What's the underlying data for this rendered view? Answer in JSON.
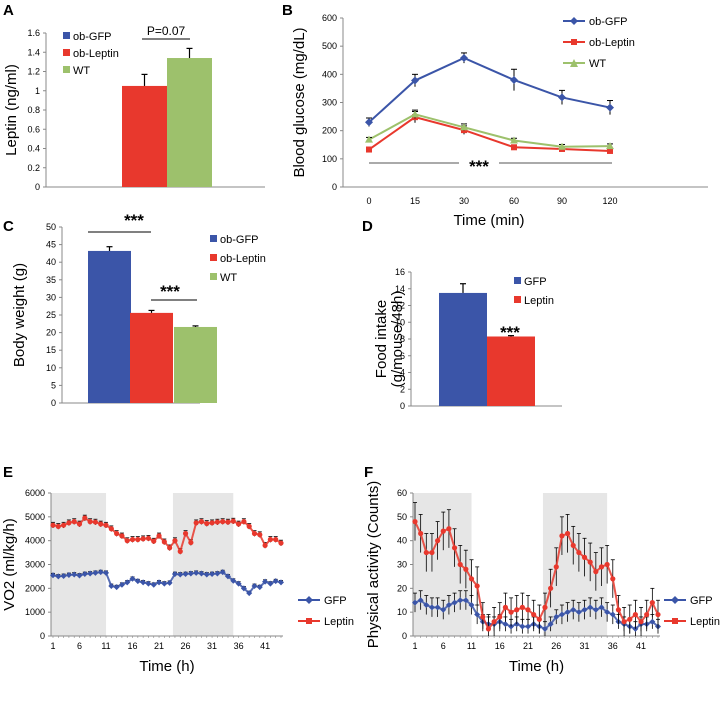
{
  "colors": {
    "gfp": "#3b55a8",
    "leptin": "#e8382d",
    "wt": "#9dc16c",
    "shade": "#e6e6e6",
    "axis": "#888888"
  },
  "chart_data": [
    {
      "panel": "A",
      "type": "bar",
      "ylabel": "Leptin (ng/ml)",
      "ylim": [
        0,
        1.6
      ],
      "yticks": [
        "0",
        "0.2",
        "0.4",
        "0.6",
        "0.8",
        "1",
        "1.2",
        "1.4",
        "1.6"
      ],
      "series": [
        {
          "name": "ob-GFP",
          "value": 0,
          "err": 0
        },
        {
          "name": "ob-Leptin",
          "value": 1.05,
          "err": 0.12
        },
        {
          "name": "WT",
          "value": 1.34,
          "err": 0.1
        }
      ],
      "annotation": "P=0.07"
    },
    {
      "panel": "B",
      "type": "line",
      "xlabel": "Time (min)",
      "ylabel": "Blood glucose (mg/dL)",
      "ylim": [
        0,
        600
      ],
      "yticks": [
        "0",
        "100",
        "200",
        "300",
        "400",
        "500",
        "600"
      ],
      "x": [
        "0",
        "15",
        "30",
        "60",
        "90",
        "120"
      ],
      "series": [
        {
          "name": "ob-GFP",
          "values": [
            230,
            378,
            458,
            380,
            318,
            282
          ],
          "err": [
            15,
            22,
            18,
            38,
            25,
            25
          ]
        },
        {
          "name": "ob-Leptin",
          "values": [
            133,
            248,
            202,
            141,
            135,
            128
          ],
          "err": [
            8,
            20,
            15,
            8,
            8,
            8
          ]
        },
        {
          "name": "WT",
          "values": [
            168,
            258,
            212,
            165,
            143,
            145
          ],
          "err": [
            8,
            15,
            12,
            8,
            8,
            8
          ]
        }
      ],
      "annotation": "***"
    },
    {
      "panel": "C",
      "type": "bar",
      "ylabel": "Body weight (g)",
      "ylim": [
        0,
        50
      ],
      "yticks": [
        "0",
        "5",
        "10",
        "15",
        "20",
        "25",
        "30",
        "35",
        "40",
        "45",
        "50"
      ],
      "series": [
        {
          "name": "ob-GFP",
          "value": 43.2,
          "err": 1.2
        },
        {
          "name": "ob-Leptin",
          "value": 25.6,
          "err": 0.7
        },
        {
          "name": "WT",
          "value": 21.6,
          "err": 0.3
        }
      ],
      "annotations": [
        "***",
        "***"
      ]
    },
    {
      "panel": "D",
      "type": "bar",
      "ylabel": "Food intake",
      "ylabel2": "(g/mouse/48h)",
      "ylim": [
        0,
        16
      ],
      "yticks": [
        "0",
        "2",
        "4",
        "6",
        "8",
        "10",
        "12",
        "14",
        "16"
      ],
      "series": [
        {
          "name": "GFP",
          "value": 13.5,
          "err": 1.1
        },
        {
          "name": "Leptin",
          "value": 8.3,
          "err": 0.1
        }
      ],
      "annotation": "***"
    },
    {
      "panel": "E",
      "type": "line",
      "xlabel": "Time (h)",
      "ylabel": "VO2 (ml/kg/h)",
      "ylim": [
        0,
        6000
      ],
      "yticks": [
        "0",
        "1000",
        "2000",
        "3000",
        "4000",
        "5000",
        "6000"
      ],
      "xticks": [
        "1",
        "6",
        "11",
        "16",
        "21",
        "26",
        "31",
        "36",
        "41"
      ],
      "shaded": [
        [
          1,
          11
        ],
        [
          24,
          35
        ]
      ],
      "series": [
        {
          "name": "GFP",
          "values": [
            2550,
            2500,
            2520,
            2560,
            2580,
            2540,
            2600,
            2620,
            2650,
            2680,
            2650,
            2100,
            2050,
            2150,
            2250,
            2400,
            2300,
            2250,
            2200,
            2150,
            2250,
            2200,
            2230,
            2600,
            2580,
            2600,
            2620,
            2650,
            2620,
            2580,
            2600,
            2620,
            2680,
            2500,
            2320,
            2200,
            2000,
            1800,
            2100,
            2050,
            2280,
            2200,
            2300,
            2250
          ],
          "err": [
            80,
            80,
            80,
            80,
            80,
            80,
            80,
            80,
            80,
            80,
            80,
            80,
            80,
            80,
            80,
            80,
            80,
            80,
            80,
            80,
            80,
            80,
            80,
            80,
            80,
            80,
            80,
            80,
            80,
            80,
            80,
            80,
            80,
            80,
            80,
            80,
            80,
            80,
            80,
            80,
            80,
            80,
            80,
            80
          ]
        },
        {
          "name": "Leptin",
          "values": [
            4650,
            4600,
            4650,
            4750,
            4800,
            4700,
            4950,
            4800,
            4780,
            4700,
            4650,
            4500,
            4300,
            4200,
            4000,
            4050,
            4050,
            4080,
            4100,
            3980,
            4200,
            3950,
            3700,
            4000,
            3550,
            4300,
            3920,
            4750,
            4800,
            4720,
            4750,
            4780,
            4800,
            4780,
            4820,
            4700,
            4800,
            4600,
            4300,
            4250,
            3800,
            4050,
            4050,
            3900
          ],
          "err": [
            120,
            120,
            120,
            120,
            120,
            120,
            120,
            120,
            120,
            120,
            120,
            120,
            120,
            120,
            120,
            120,
            120,
            120,
            120,
            120,
            120,
            120,
            120,
            120,
            120,
            120,
            120,
            120,
            120,
            120,
            120,
            120,
            120,
            120,
            120,
            120,
            120,
            120,
            120,
            120,
            120,
            120,
            120,
            120
          ]
        }
      ]
    },
    {
      "panel": "F",
      "type": "line",
      "xlabel": "Time (h)",
      "ylabel": "Physical activity (Counts)",
      "ylim": [
        0,
        60
      ],
      "yticks": [
        "0",
        "10",
        "20",
        "30",
        "40",
        "50",
        "60"
      ],
      "xticks": [
        "1",
        "6",
        "11",
        "16",
        "21",
        "26",
        "31",
        "36",
        "41"
      ],
      "shaded": [
        [
          1,
          11
        ],
        [
          24,
          35
        ]
      ],
      "series": [
        {
          "name": "GFP",
          "values": [
            14,
            15,
            13,
            12,
            12,
            11,
            13,
            14,
            15,
            15,
            13,
            9,
            6,
            5,
            5,
            6,
            5,
            4,
            5,
            4,
            4,
            5,
            4,
            3,
            5,
            8,
            9,
            10,
            11,
            10,
            11,
            12,
            11,
            12,
            10,
            9,
            6,
            5,
            4,
            3,
            5,
            5,
            6,
            4
          ],
          "err": [
            4,
            4,
            4,
            4,
            4,
            4,
            4,
            4,
            4,
            4,
            4,
            4,
            3,
            3,
            3,
            3,
            3,
            3,
            3,
            3,
            3,
            3,
            3,
            3,
            3,
            3,
            4,
            4,
            4,
            4,
            4,
            4,
            4,
            4,
            4,
            4,
            3,
            3,
            3,
            3,
            3,
            3,
            3,
            3
          ]
        },
        {
          "name": "Leptin",
          "values": [
            48,
            43,
            35,
            35,
            40,
            44,
            45,
            37,
            30,
            28,
            24,
            21,
            8,
            3,
            6,
            8,
            12,
            10,
            11,
            12,
            11,
            9,
            7,
            12,
            20,
            29,
            42,
            43,
            38,
            35,
            33,
            31,
            27,
            29,
            30,
            24,
            11,
            6,
            7,
            9,
            6,
            9,
            14,
            9
          ],
          "err": [
            8,
            8,
            8,
            8,
            8,
            8,
            8,
            8,
            8,
            8,
            8,
            8,
            6,
            6,
            6,
            6,
            6,
            6,
            6,
            6,
            6,
            6,
            6,
            6,
            8,
            8,
            8,
            8,
            8,
            8,
            8,
            8,
            8,
            8,
            8,
            8,
            6,
            6,
            6,
            6,
            6,
            6,
            6,
            6
          ]
        }
      ]
    }
  ]
}
